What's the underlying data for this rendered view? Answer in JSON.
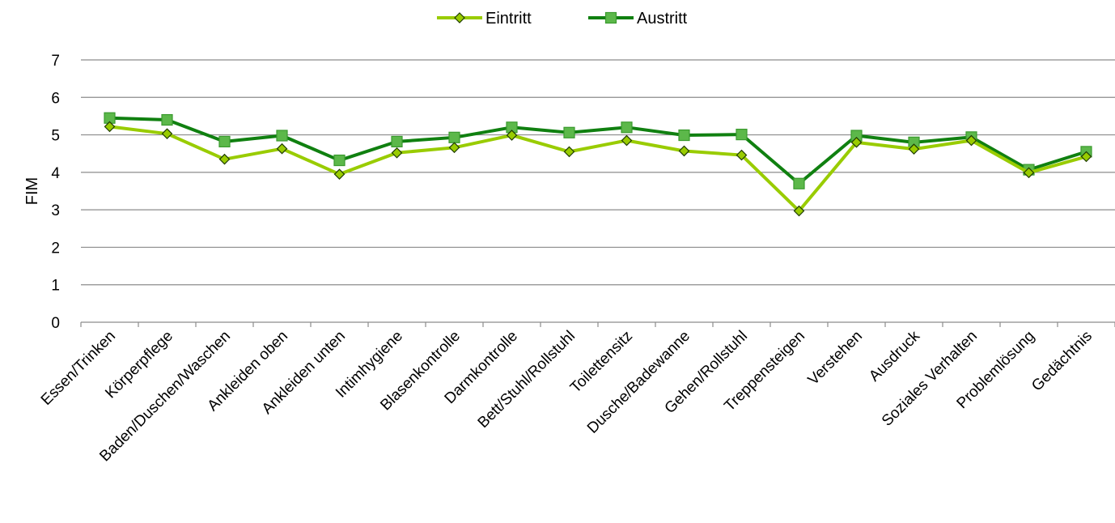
{
  "chart_data": {
    "type": "line",
    "ylabel": "FIM",
    "xlabel": "",
    "ylim": [
      0,
      7
    ],
    "yticks": [
      "0",
      "1",
      "2",
      "3",
      "4",
      "5",
      "6",
      "7"
    ],
    "grid": true,
    "legend_position": "top-center",
    "categories": [
      "Essen/Trinken",
      "Körperpflege",
      "Baden/Duschen/Waschen",
      "Ankleiden oben",
      "Ankleiden unten",
      "Intimhygiene",
      "Blasenkontrolle",
      "Darmkontrolle",
      "Bett/Stuhl/Rollstuhl",
      "Toilettensitz",
      "Dusche/Badewanne",
      "Gehen/Rollstuhl",
      "Treppensteigen",
      "Verstehen",
      "Ausdruck",
      "Soziales Verhalten",
      "Problemlösung",
      "Gedächtnis"
    ],
    "series": [
      {
        "name": "Eintritt",
        "color": "#99cc00",
        "marker": "diamond",
        "values": [
          5.22,
          5.03,
          4.35,
          4.63,
          3.95,
          4.52,
          4.66,
          4.99,
          4.55,
          4.85,
          4.57,
          4.46,
          2.97,
          4.8,
          4.62,
          4.85,
          3.99,
          4.42
        ]
      },
      {
        "name": "Austritt",
        "color": "#108010",
        "marker": "square",
        "marker_color": "#5cb84a",
        "values": [
          5.45,
          5.4,
          4.82,
          4.98,
          4.32,
          4.82,
          4.93,
          5.2,
          5.06,
          5.2,
          4.99,
          5.01,
          3.7,
          4.98,
          4.8,
          4.94,
          4.07,
          4.55
        ]
      }
    ]
  }
}
